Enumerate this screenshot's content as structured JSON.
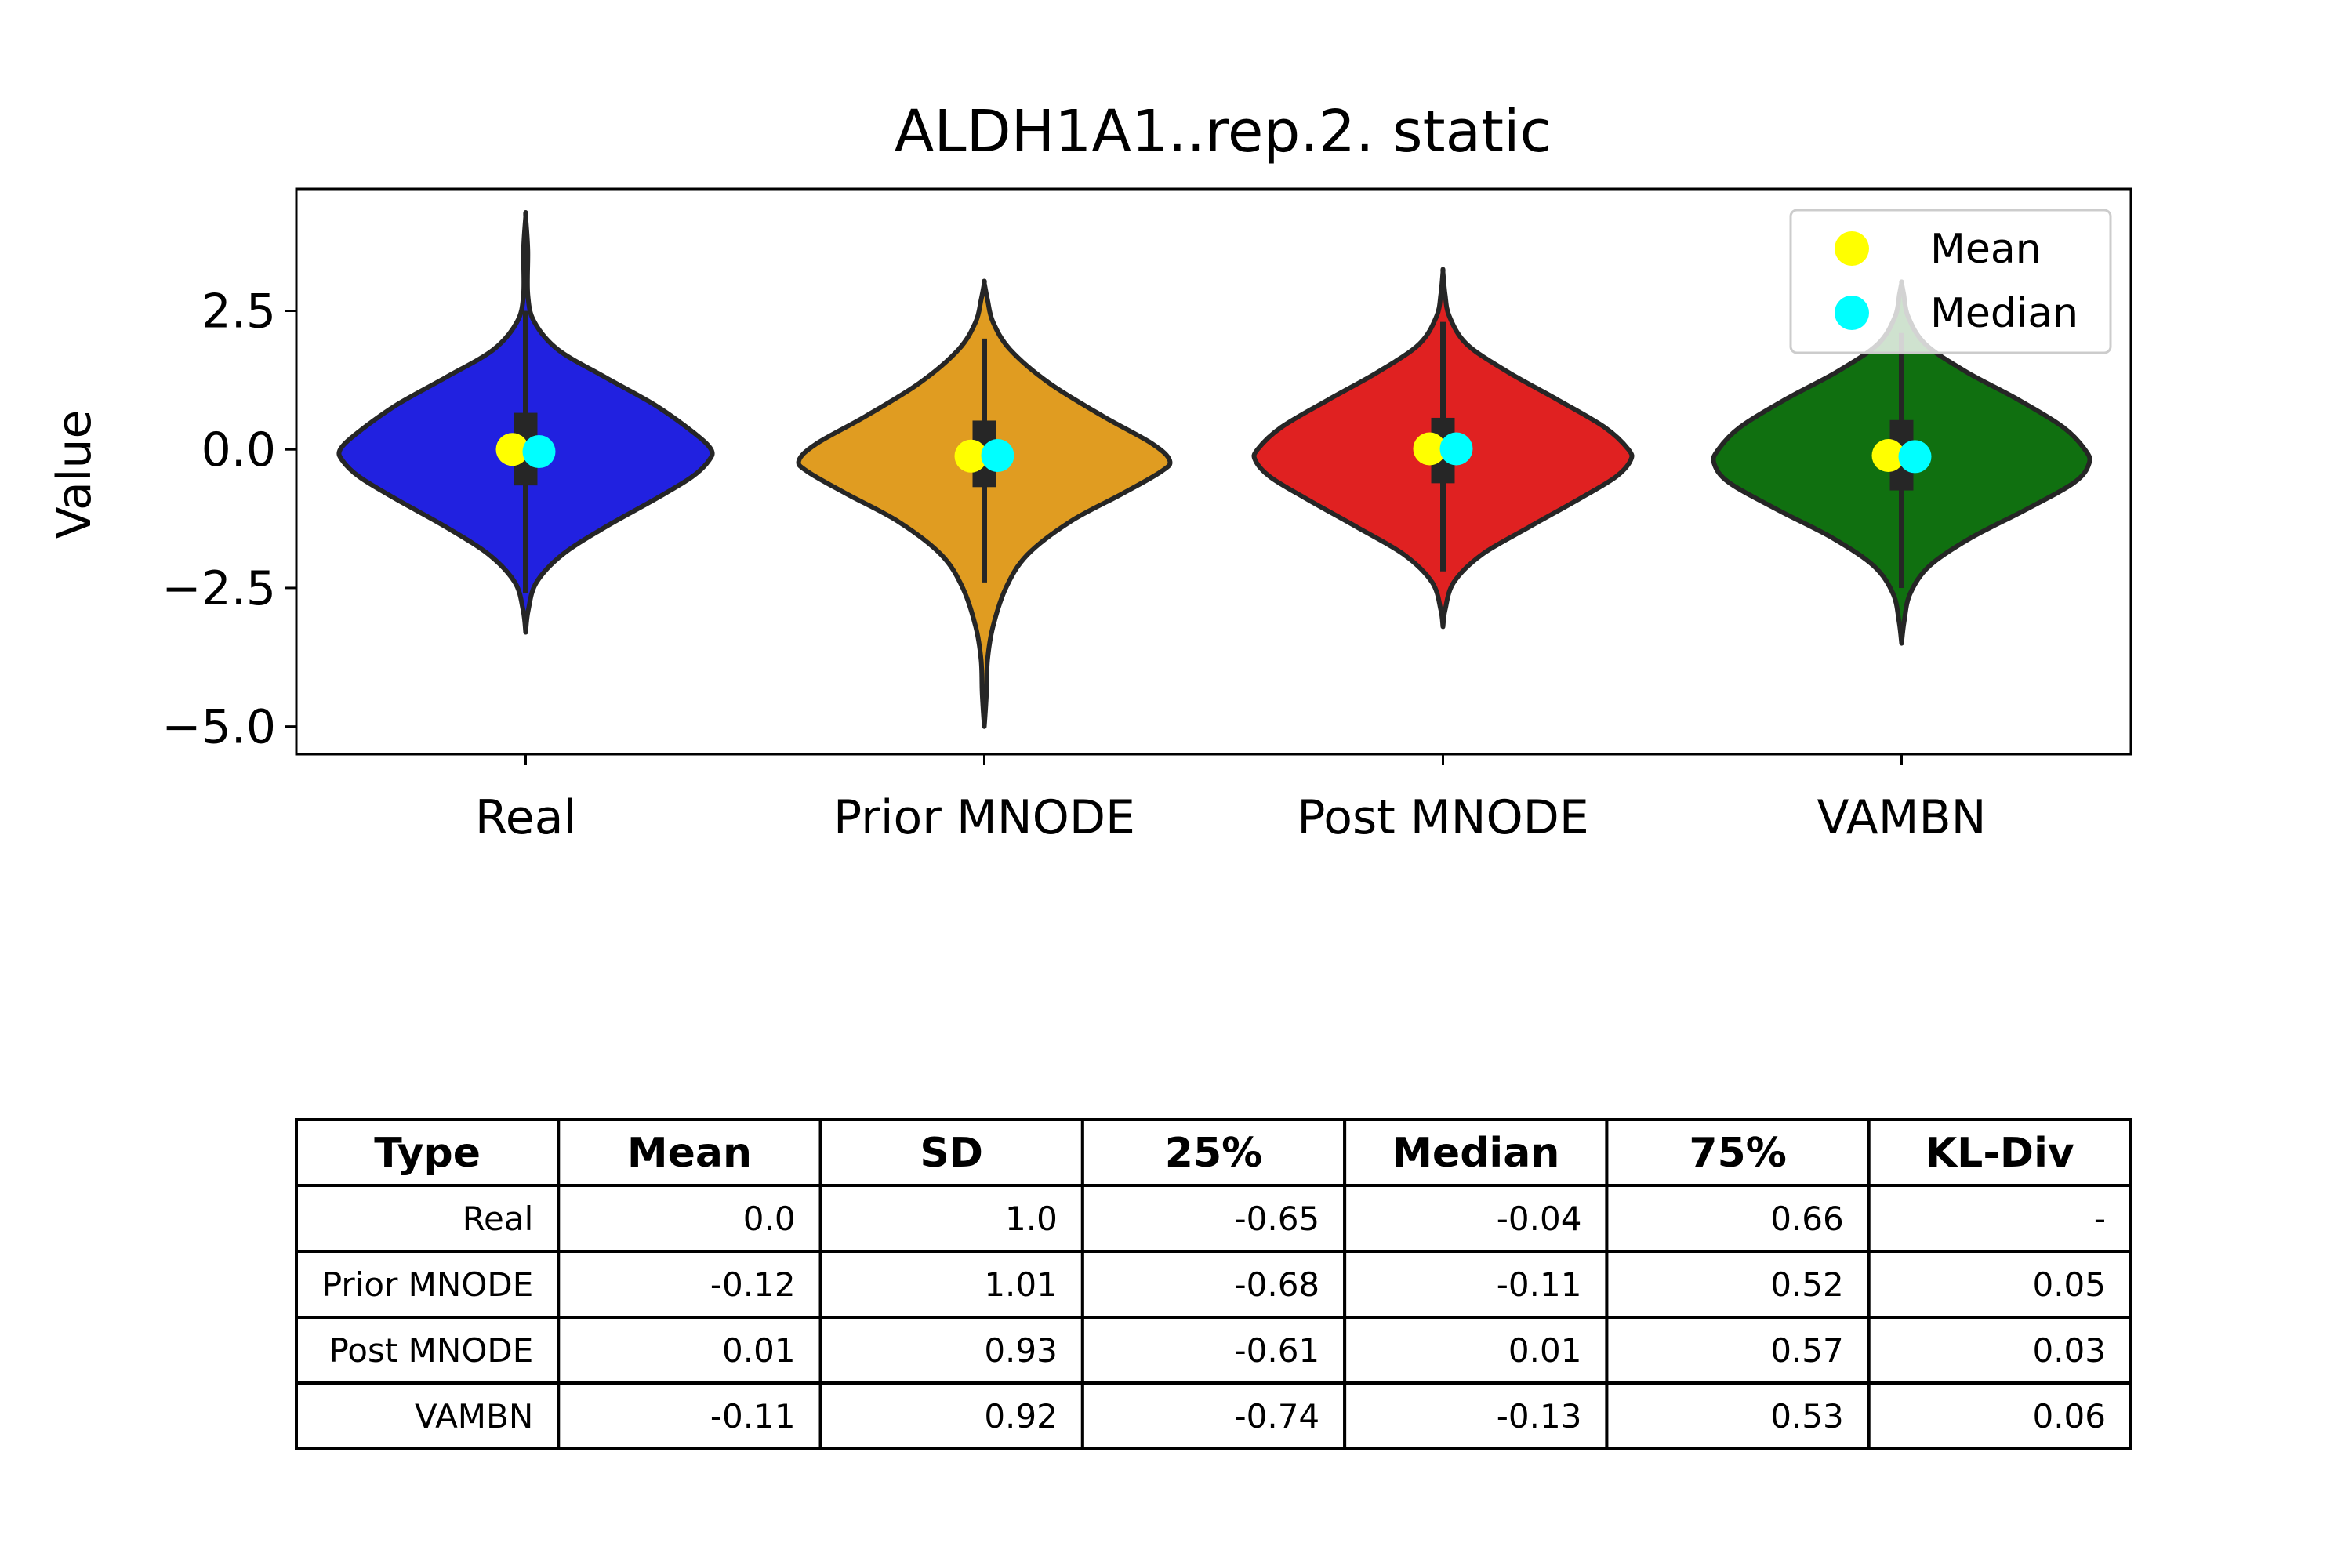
{
  "chart_data": {
    "type": "violin",
    "title": "ALDH1A1..rep.2. static",
    "xlabel": "",
    "ylabel": "Value",
    "ylim": [
      -5.5,
      4.7
    ],
    "yticks": [
      2.5,
      0.0,
      -2.5,
      -5.0
    ],
    "ytick_labels": [
      "2.5",
      "0.0",
      "−2.5",
      "−5.0"
    ],
    "categories": [
      "Real",
      "Prior MNODE",
      "Post MNODE",
      "VAMBN"
    ],
    "legend": {
      "position": "top-right",
      "entries": [
        {
          "label": "Mean",
          "color": "#ffff00"
        },
        {
          "label": "Median",
          "color": "#00ffff"
        }
      ]
    },
    "violins": [
      {
        "name": "Real",
        "color": "#2121e0",
        "min": -3.3,
        "max": 4.2,
        "q1": -0.65,
        "median": -0.04,
        "q3": 0.66,
        "mean": 0.0,
        "whisker_low": -2.6,
        "whisker_high": 2.5,
        "profile": [
          [
            -3.3,
            0.0
          ],
          [
            -2.9,
            0.012
          ],
          [
            -2.4,
            0.05
          ],
          [
            -1.9,
            0.17
          ],
          [
            -1.4,
            0.37
          ],
          [
            -0.9,
            0.6
          ],
          [
            -0.5,
            0.77
          ],
          [
            -0.2,
            0.85
          ],
          [
            0.0,
            0.86
          ],
          [
            0.3,
            0.78
          ],
          [
            0.8,
            0.6
          ],
          [
            1.3,
            0.37
          ],
          [
            1.8,
            0.15
          ],
          [
            2.3,
            0.04
          ],
          [
            2.8,
            0.01
          ],
          [
            3.6,
            0.01
          ],
          [
            4.2,
            0.0
          ]
        ]
      },
      {
        "name": "Prior MNODE",
        "color": "#e09c21",
        "min": -5.0,
        "max": 3.0,
        "q1": -0.68,
        "median": -0.11,
        "q3": 0.52,
        "mean": -0.12,
        "whisker_low": -2.4,
        "whisker_high": 2.0,
        "profile": [
          [
            -5.0,
            0.0
          ],
          [
            -4.4,
            0.01
          ],
          [
            -3.8,
            0.015
          ],
          [
            -3.2,
            0.04
          ],
          [
            -2.5,
            0.1
          ],
          [
            -1.9,
            0.2
          ],
          [
            -1.3,
            0.4
          ],
          [
            -0.8,
            0.64
          ],
          [
            -0.4,
            0.82
          ],
          [
            -0.2,
            0.86
          ],
          [
            0.1,
            0.78
          ],
          [
            0.6,
            0.55
          ],
          [
            1.2,
            0.3
          ],
          [
            1.8,
            0.12
          ],
          [
            2.3,
            0.04
          ],
          [
            2.7,
            0.015
          ],
          [
            3.0,
            0.0
          ]
        ]
      },
      {
        "name": "Post MNODE",
        "color": "#e02121",
        "min": -3.2,
        "max": 3.2,
        "q1": -0.61,
        "median": 0.01,
        "q3": 0.57,
        "mean": 0.01,
        "whisker_low": -2.2,
        "whisker_high": 2.3,
        "profile": [
          [
            -3.2,
            0.0
          ],
          [
            -2.9,
            0.01
          ],
          [
            -2.4,
            0.05
          ],
          [
            -1.9,
            0.18
          ],
          [
            -1.4,
            0.4
          ],
          [
            -0.9,
            0.63
          ],
          [
            -0.5,
            0.8
          ],
          [
            -0.2,
            0.87
          ],
          [
            0.0,
            0.86
          ],
          [
            0.4,
            0.75
          ],
          [
            0.9,
            0.53
          ],
          [
            1.4,
            0.3
          ],
          [
            1.9,
            0.11
          ],
          [
            2.4,
            0.03
          ],
          [
            2.8,
            0.01
          ],
          [
            3.2,
            0.0
          ]
        ]
      },
      {
        "name": "VAMBN",
        "color": "#107010",
        "min": -3.5,
        "max": 3.0,
        "q1": -0.74,
        "median": -0.13,
        "q3": 0.53,
        "mean": -0.11,
        "whisker_low": -2.5,
        "whisker_high": 2.1,
        "profile": [
          [
            -3.5,
            0.0
          ],
          [
            -3.1,
            0.012
          ],
          [
            -2.6,
            0.04
          ],
          [
            -2.1,
            0.13
          ],
          [
            -1.6,
            0.32
          ],
          [
            -1.1,
            0.57
          ],
          [
            -0.6,
            0.8
          ],
          [
            -0.25,
            0.87
          ],
          [
            0.0,
            0.85
          ],
          [
            0.4,
            0.75
          ],
          [
            0.9,
            0.54
          ],
          [
            1.4,
            0.3
          ],
          [
            1.9,
            0.11
          ],
          [
            2.4,
            0.03
          ],
          [
            2.8,
            0.01
          ],
          [
            3.0,
            0.0
          ]
        ]
      }
    ]
  },
  "table": {
    "headers": [
      "Type",
      "Mean",
      "SD",
      "25%",
      "Median",
      "75%",
      "KL-Div"
    ],
    "rows": [
      [
        "Real",
        "0.0",
        "1.0",
        "-0.65",
        "-0.04",
        "0.66",
        "-"
      ],
      [
        "Prior MNODE",
        "-0.12",
        "1.01",
        "-0.68",
        "-0.11",
        "0.52",
        "0.05"
      ],
      [
        "Post MNODE",
        "0.01",
        "0.93",
        "-0.61",
        "0.01",
        "0.57",
        "0.03"
      ],
      [
        "VAMBN",
        "-0.11",
        "0.92",
        "-0.74",
        "-0.13",
        "0.53",
        "0.06"
      ]
    ]
  }
}
